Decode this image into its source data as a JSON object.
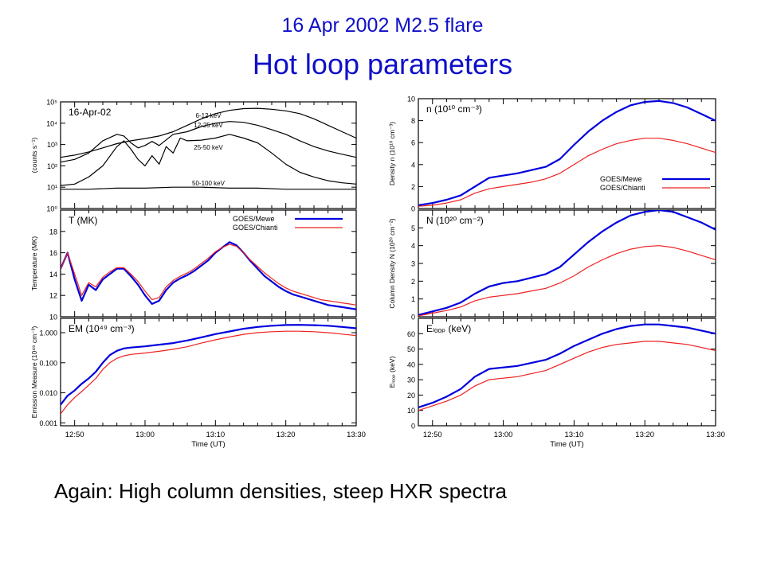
{
  "slide": {
    "subtitle": "16 Apr 2002 M2.5 flare",
    "title": "Hot loop parameters",
    "caption": "Again: High column densities, steep HXR spectra"
  },
  "colors": {
    "title": "#1010c8",
    "mewe": "#0000dd",
    "chianti": "#ee2020",
    "axis": "#000000"
  },
  "chart_data": [
    {
      "id": "counts",
      "type": "line",
      "annotation": "16-Apr-02",
      "ylabel": "(counts s⁻¹)",
      "yscale": "log",
      "ylim": [
        1,
        100000
      ],
      "yticks": [
        {
          "v": 1,
          "label": "10⁰"
        },
        {
          "v": 10,
          "label": "10¹"
        },
        {
          "v": 100,
          "label": "10²"
        },
        {
          "v": 1000,
          "label": "10³"
        },
        {
          "v": 10000,
          "label": "10⁴"
        },
        {
          "v": 100000,
          "label": "10⁵"
        }
      ],
      "xlim": [
        -12,
        30
      ],
      "series": [
        {
          "name": "6-12 keV",
          "color": "#000000",
          "x": [
            -12,
            -10,
            -8,
            -6,
            -4,
            -2,
            0,
            2,
            4,
            6,
            8,
            10,
            12,
            14,
            16,
            18,
            20,
            22,
            24,
            26,
            28,
            30
          ],
          "y": [
            250,
            320,
            450,
            700,
            1100,
            1500,
            1900,
            2500,
            4000,
            8000,
            16000,
            28000,
            40000,
            48000,
            50000,
            45000,
            38000,
            28000,
            16000,
            8000,
            4000,
            2000
          ]
        },
        {
          "name": "12-25 keV",
          "color": "#000000",
          "x": [
            -12,
            -10,
            -8,
            -6,
            -4,
            -3,
            -2,
            -1,
            0,
            1,
            2,
            4,
            6,
            8,
            10,
            12,
            14,
            16,
            18,
            20,
            22,
            24,
            26,
            28,
            30
          ],
          "y": [
            150,
            200,
            400,
            1500,
            3000,
            2500,
            1200,
            700,
            900,
            1400,
            900,
            3000,
            4000,
            7000,
            10000,
            12000,
            11000,
            8000,
            5000,
            3000,
            1500,
            800,
            500,
            350,
            250
          ]
        },
        {
          "name": "25-50 keV",
          "color": "#000000",
          "x": [
            -12,
            -10,
            -8,
            -6,
            -4,
            -3,
            -2,
            -1,
            0,
            1,
            2,
            3,
            4,
            5,
            6,
            8,
            10,
            12,
            14,
            16,
            18,
            20,
            22,
            24,
            26,
            28,
            30
          ],
          "y": [
            12,
            14,
            30,
            100,
            800,
            1500,
            600,
            200,
            100,
            300,
            120,
            800,
            400,
            2000,
            1500,
            1600,
            2000,
            3000,
            2000,
            1200,
            400,
            120,
            50,
            30,
            20,
            16,
            14
          ]
        },
        {
          "name": "50-100 keV",
          "color": "#000000",
          "x": [
            -12,
            -8,
            -4,
            0,
            4,
            8,
            12,
            16,
            20,
            24,
            30
          ],
          "y": [
            8,
            8,
            9,
            9,
            10,
            10,
            9,
            9,
            8,
            8,
            8
          ]
        }
      ]
    },
    {
      "id": "temperature",
      "type": "line",
      "annotation": "T (MK)",
      "ylabel": "Temperature (MK)",
      "ylim": [
        10,
        20
      ],
      "yticks": [
        {
          "v": 10,
          "label": "10"
        },
        {
          "v": 12,
          "label": "12"
        },
        {
          "v": 14,
          "label": "14"
        },
        {
          "v": 16,
          "label": "16"
        },
        {
          "v": 18,
          "label": "18"
        }
      ],
      "xlim": [
        -12,
        30
      ],
      "legend": "top-right",
      "series": [
        {
          "name": "GOES/Mewe",
          "color": "#0000dd",
          "x": [
            -12,
            -11,
            -10,
            -9,
            -8,
            -7,
            -6,
            -5,
            -4,
            -3,
            -2,
            -1,
            0,
            1,
            2,
            3,
            4,
            5,
            6,
            7,
            8,
            9,
            10,
            11,
            12,
            13,
            14,
            15,
            16,
            17,
            18,
            19,
            20,
            21,
            22,
            23,
            24,
            25,
            26,
            27,
            28,
            29,
            30
          ],
          "y": [
            14.5,
            16.0,
            13.5,
            11.5,
            13.0,
            12.5,
            13.5,
            14.0,
            14.5,
            14.5,
            13.8,
            13.0,
            12.0,
            11.2,
            11.5,
            12.5,
            13.2,
            13.6,
            13.9,
            14.3,
            14.8,
            15.3,
            16.0,
            16.5,
            17.0,
            16.7,
            16.0,
            15.2,
            14.5,
            13.8,
            13.3,
            12.8,
            12.4,
            12.1,
            11.9,
            11.7,
            11.5,
            11.3,
            11.1,
            11.0,
            10.9,
            10.8,
            10.7
          ]
        },
        {
          "name": "GOES/Chianti",
          "color": "#ee2020",
          "x": [
            -12,
            -11,
            -10,
            -9,
            -8,
            -7,
            -6,
            -5,
            -4,
            -3,
            -2,
            -1,
            0,
            1,
            2,
            3,
            4,
            5,
            6,
            7,
            8,
            9,
            10,
            11,
            12,
            13,
            14,
            15,
            16,
            17,
            18,
            19,
            20,
            21,
            22,
            23,
            24,
            25,
            26,
            27,
            28,
            29,
            30
          ],
          "y": [
            14.5,
            16.0,
            14.0,
            12.0,
            13.2,
            12.8,
            13.7,
            14.2,
            14.6,
            14.6,
            14.0,
            13.3,
            12.4,
            11.6,
            11.8,
            12.8,
            13.4,
            13.8,
            14.1,
            14.5,
            15.0,
            15.5,
            16.1,
            16.5,
            16.8,
            16.6,
            16.0,
            15.3,
            14.7,
            14.1,
            13.6,
            13.1,
            12.7,
            12.4,
            12.2,
            12.0,
            11.8,
            11.6,
            11.5,
            11.4,
            11.3,
            11.2,
            11.1
          ]
        }
      ]
    },
    {
      "id": "em",
      "type": "line",
      "annotation": "EM (10⁴⁹ cm⁻³)",
      "ylabel": "Emission Measure (10⁴⁹ cm⁻³)",
      "xlabel": "Time (UT)",
      "yscale": "log",
      "ylim": [
        0.0008,
        3
      ],
      "yticks": [
        {
          "v": 0.001,
          "label": "0.001"
        },
        {
          "v": 0.01,
          "label": "0.010"
        },
        {
          "v": 0.1,
          "label": "0.100"
        },
        {
          "v": 1,
          "label": "1.000"
        }
      ],
      "xlim": [
        -12,
        30
      ],
      "xticks": [
        {
          "v": -10,
          "label": "12:50"
        },
        {
          "v": 0,
          "label": "13:00"
        },
        {
          "v": 10,
          "label": "13:10"
        },
        {
          "v": 20,
          "label": "13:20"
        },
        {
          "v": 30,
          "label": "13:30"
        }
      ],
      "series": [
        {
          "name": "GOES/Mewe",
          "color": "#0000dd",
          "x": [
            -12,
            -11,
            -10,
            -9,
            -8,
            -7,
            -6,
            -5,
            -4,
            -3,
            -2,
            0,
            2,
            4,
            6,
            8,
            10,
            12,
            14,
            16,
            18,
            20,
            22,
            24,
            26,
            28,
            30
          ],
          "y": [
            0.004,
            0.008,
            0.012,
            0.02,
            0.03,
            0.05,
            0.1,
            0.18,
            0.25,
            0.3,
            0.32,
            0.35,
            0.4,
            0.45,
            0.55,
            0.7,
            0.9,
            1.1,
            1.35,
            1.55,
            1.7,
            1.8,
            1.82,
            1.78,
            1.7,
            1.55,
            1.4
          ]
        },
        {
          "name": "GOES/Chianti",
          "color": "#ee2020",
          "x": [
            -12,
            -11,
            -10,
            -9,
            -8,
            -7,
            -6,
            -5,
            -4,
            -3,
            -2,
            0,
            2,
            4,
            6,
            8,
            10,
            12,
            14,
            16,
            18,
            20,
            22,
            24,
            26,
            28,
            30
          ],
          "y": [
            0.002,
            0.004,
            0.007,
            0.011,
            0.018,
            0.03,
            0.06,
            0.1,
            0.14,
            0.17,
            0.19,
            0.21,
            0.24,
            0.28,
            0.34,
            0.45,
            0.58,
            0.72,
            0.88,
            1.0,
            1.08,
            1.12,
            1.12,
            1.08,
            1.0,
            0.9,
            0.8
          ]
        }
      ]
    },
    {
      "id": "density",
      "type": "line",
      "annotation": "n  (10¹⁰ cm⁻³)",
      "ylabel": "Density n (10¹⁰ cm⁻³)",
      "ylim": [
        0,
        10
      ],
      "yticks": [
        {
          "v": 0,
          "label": "0"
        },
        {
          "v": 2,
          "label": "2"
        },
        {
          "v": 4,
          "label": "4"
        },
        {
          "v": 6,
          "label": "6"
        },
        {
          "v": 8,
          "label": "8"
        },
        {
          "v": 10,
          "label": "10"
        }
      ],
      "xlim": [
        -12,
        30
      ],
      "legend": "bottom-right",
      "series": [
        {
          "name": "GOES/Mewe",
          "color": "#0000dd",
          "x": [
            -12,
            -10,
            -8,
            -6,
            -4,
            -2,
            0,
            2,
            4,
            6,
            8,
            10,
            12,
            14,
            16,
            18,
            20,
            22,
            24,
            26,
            28,
            30
          ],
          "y": [
            0.3,
            0.5,
            0.8,
            1.2,
            2.0,
            2.8,
            3.0,
            3.2,
            3.5,
            3.8,
            4.5,
            5.8,
            7.0,
            8.0,
            8.8,
            9.4,
            9.7,
            9.8,
            9.6,
            9.2,
            8.6,
            8.0
          ]
        },
        {
          "name": "GOES/Chianti",
          "color": "#ee2020",
          "x": [
            -12,
            -10,
            -8,
            -6,
            -4,
            -2,
            0,
            2,
            4,
            6,
            8,
            10,
            12,
            14,
            16,
            18,
            20,
            22,
            24,
            26,
            28,
            30
          ],
          "y": [
            0.2,
            0.3,
            0.5,
            0.8,
            1.4,
            1.8,
            2.0,
            2.2,
            2.4,
            2.7,
            3.2,
            4.0,
            4.8,
            5.4,
            5.9,
            6.2,
            6.4,
            6.4,
            6.2,
            5.9,
            5.5,
            5.1
          ]
        }
      ]
    },
    {
      "id": "column_density",
      "type": "line",
      "annotation": "N  (10²⁰ cm⁻²)",
      "ylabel": "Column Density N (10²⁰ cm⁻²)",
      "ylim": [
        0,
        6
      ],
      "yticks": [
        {
          "v": 0,
          "label": "0"
        },
        {
          "v": 1,
          "label": "1"
        },
        {
          "v": 2,
          "label": "2"
        },
        {
          "v": 3,
          "label": "3"
        },
        {
          "v": 4,
          "label": "4"
        },
        {
          "v": 5,
          "label": "5"
        }
      ],
      "xlim": [
        -12,
        30
      ],
      "series": [
        {
          "name": "GOES/Mewe",
          "color": "#0000dd",
          "x": [
            -12,
            -10,
            -8,
            -6,
            -4,
            -2,
            0,
            2,
            4,
            6,
            8,
            10,
            12,
            14,
            16,
            18,
            20,
            22,
            24,
            26,
            28,
            30
          ],
          "y": [
            0.1,
            0.3,
            0.5,
            0.8,
            1.3,
            1.7,
            1.9,
            2.0,
            2.2,
            2.4,
            2.8,
            3.5,
            4.2,
            4.8,
            5.3,
            5.7,
            5.9,
            6.0,
            5.9,
            5.6,
            5.3,
            4.9
          ]
        },
        {
          "name": "GOES/Chianti",
          "color": "#ee2020",
          "x": [
            -12,
            -10,
            -8,
            -6,
            -4,
            -2,
            0,
            2,
            4,
            6,
            8,
            10,
            12,
            14,
            16,
            18,
            20,
            22,
            24,
            26,
            28,
            30
          ],
          "y": [
            0.05,
            0.2,
            0.35,
            0.55,
            0.9,
            1.1,
            1.2,
            1.3,
            1.45,
            1.6,
            1.9,
            2.3,
            2.8,
            3.2,
            3.55,
            3.8,
            3.95,
            4.0,
            3.9,
            3.7,
            3.45,
            3.2
          ]
        }
      ]
    },
    {
      "id": "eloop",
      "type": "line",
      "annotation": "Eₗₒₒₚ (keV)",
      "ylabel": "Eₗₒₒₚ (keV)",
      "xlabel": "Time (UT)",
      "ylim": [
        0,
        70
      ],
      "yticks": [
        {
          "v": 0,
          "label": "0"
        },
        {
          "v": 10,
          "label": "10"
        },
        {
          "v": 20,
          "label": "20"
        },
        {
          "v": 30,
          "label": "30"
        },
        {
          "v": 40,
          "label": "40"
        },
        {
          "v": 50,
          "label": "50"
        },
        {
          "v": 60,
          "label": "60"
        }
      ],
      "xlim": [
        -12,
        30
      ],
      "xticks": [
        {
          "v": -10,
          "label": "12:50"
        },
        {
          "v": 0,
          "label": "13:00"
        },
        {
          "v": 10,
          "label": "13:10"
        },
        {
          "v": 20,
          "label": "13:20"
        },
        {
          "v": 30,
          "label": "13:30"
        }
      ],
      "series": [
        {
          "name": "GOES/Mewe",
          "color": "#0000dd",
          "x": [
            -12,
            -10,
            -8,
            -6,
            -4,
            -2,
            0,
            2,
            4,
            6,
            8,
            10,
            12,
            14,
            16,
            18,
            20,
            22,
            24,
            26,
            28,
            30
          ],
          "y": [
            12,
            15,
            19,
            24,
            32,
            37,
            38,
            39,
            41,
            43,
            47,
            52,
            56,
            60,
            63,
            65,
            66,
            66,
            65,
            64,
            62,
            60
          ]
        },
        {
          "name": "GOES/Chianti",
          "color": "#ee2020",
          "x": [
            -12,
            -10,
            -8,
            -6,
            -4,
            -2,
            0,
            2,
            4,
            6,
            8,
            10,
            12,
            14,
            16,
            18,
            20,
            22,
            24,
            26,
            28,
            30
          ],
          "y": [
            10,
            13,
            16,
            20,
            26,
            30,
            31,
            32,
            34,
            36,
            40,
            44,
            48,
            51,
            53,
            54,
            55,
            55,
            54,
            53,
            51,
            49
          ]
        }
      ]
    }
  ]
}
